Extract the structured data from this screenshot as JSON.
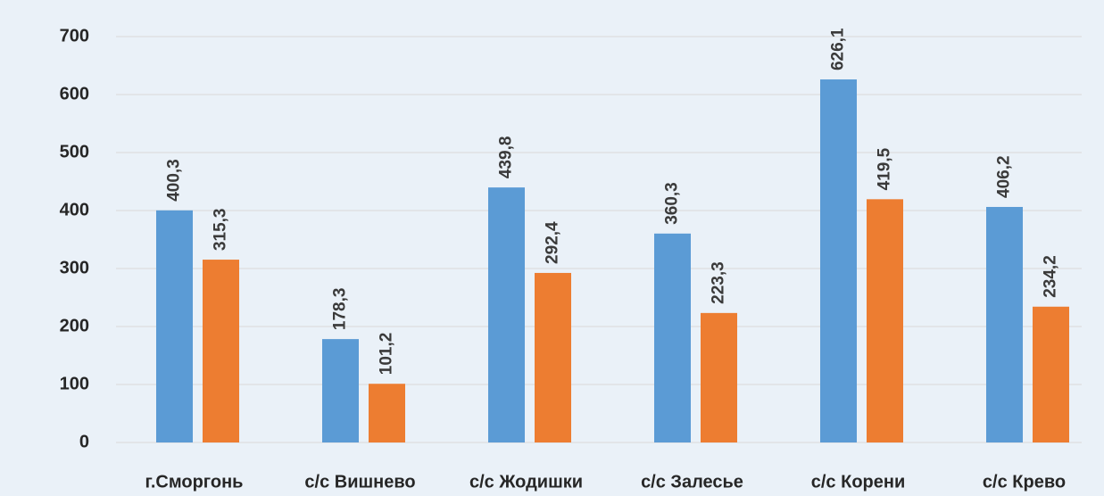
{
  "chart_data": {
    "type": "bar",
    "categories": [
      "г.Сморгонь",
      "с/с Вишнево",
      "с/с Жодишки",
      "с/с Залесье",
      "с/с Корени",
      "с/с Крево"
    ],
    "series": [
      {
        "color": "#5b9bd5",
        "values": [
          400.3,
          178.3,
          439.8,
          360.3,
          626.1,
          406.2
        ],
        "value_labels": [
          "400,3",
          "178,3",
          "439,8",
          "360,3",
          "626,1",
          "406,2"
        ]
      },
      {
        "color": "#ed7d31",
        "values": [
          315.3,
          101.2,
          292.4,
          223.3,
          419.5,
          234.2
        ],
        "value_labels": [
          "315,3",
          "101,2",
          "292,4",
          "223,3",
          "419,5",
          "234,2"
        ]
      }
    ],
    "ylim": [
      0,
      700
    ],
    "yticks": [
      0,
      100,
      200,
      300,
      400,
      500,
      600,
      700
    ],
    "grid": true
  }
}
